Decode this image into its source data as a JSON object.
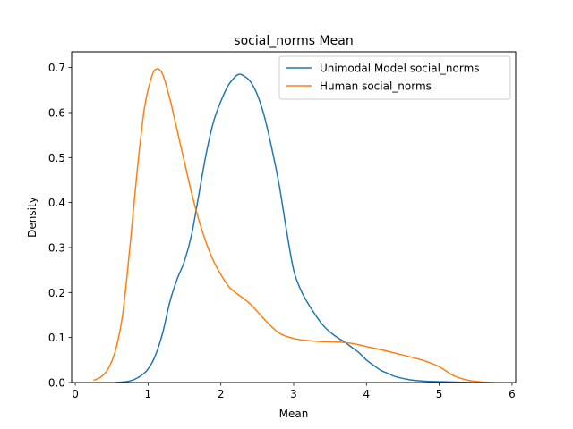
{
  "chart_data": {
    "type": "line",
    "title": "social_norms Mean",
    "xlabel": "Mean",
    "ylabel": "Density",
    "xlim": [
      -0.05,
      6.05
    ],
    "ylim": [
      0,
      0.735
    ],
    "xticks": [
      0,
      1,
      2,
      3,
      4,
      5,
      6
    ],
    "yticks": [
      0.0,
      0.1,
      0.2,
      0.3,
      0.4,
      0.5,
      0.6,
      0.7
    ],
    "xtick_labels": [
      "0",
      "1",
      "2",
      "3",
      "4",
      "5",
      "6"
    ],
    "ytick_labels": [
      "0.0",
      "0.1",
      "0.2",
      "0.3",
      "0.4",
      "0.5",
      "0.6",
      "0.7"
    ],
    "grid": false,
    "legend_position": "top-right",
    "series": [
      {
        "name": "Unimodal Model social_norms",
        "color": "#1f77b4",
        "x": [
          0.55,
          0.7,
          0.8,
          0.9,
          1.0,
          1.1,
          1.2,
          1.3,
          1.4,
          1.5,
          1.6,
          1.7,
          1.8,
          1.9,
          2.0,
          2.1,
          2.2,
          2.25,
          2.3,
          2.4,
          2.5,
          2.6,
          2.7,
          2.8,
          2.9,
          3.0,
          3.1,
          3.2,
          3.3,
          3.4,
          3.5,
          3.6,
          3.7,
          3.8,
          3.9,
          4.0,
          4.1,
          4.2,
          4.3,
          4.4,
          4.6,
          4.8,
          5.0,
          5.2,
          5.45
        ],
        "values": [
          0.0,
          0.002,
          0.006,
          0.015,
          0.03,
          0.06,
          0.11,
          0.18,
          0.23,
          0.27,
          0.33,
          0.42,
          0.51,
          0.58,
          0.625,
          0.66,
          0.68,
          0.685,
          0.683,
          0.67,
          0.64,
          0.59,
          0.52,
          0.44,
          0.34,
          0.25,
          0.205,
          0.175,
          0.15,
          0.128,
          0.112,
          0.1,
          0.09,
          0.078,
          0.066,
          0.05,
          0.038,
          0.027,
          0.02,
          0.013,
          0.006,
          0.003,
          0.002,
          0.001,
          0.0
        ]
      },
      {
        "name": "Human social_norms",
        "color": "#ff7f0e",
        "x": [
          0.25,
          0.35,
          0.45,
          0.55,
          0.65,
          0.75,
          0.85,
          0.95,
          1.05,
          1.12,
          1.2,
          1.3,
          1.4,
          1.5,
          1.6,
          1.7,
          1.8,
          1.9,
          2.0,
          2.1,
          2.2,
          2.4,
          2.6,
          2.8,
          3.0,
          3.2,
          3.4,
          3.6,
          3.8,
          4.0,
          4.2,
          4.4,
          4.6,
          4.8,
          5.0,
          5.2,
          5.4,
          5.6,
          5.75
        ],
        "values": [
          0.005,
          0.012,
          0.03,
          0.07,
          0.15,
          0.3,
          0.47,
          0.61,
          0.68,
          0.697,
          0.685,
          0.63,
          0.56,
          0.49,
          0.42,
          0.36,
          0.31,
          0.27,
          0.24,
          0.215,
          0.2,
          0.175,
          0.14,
          0.11,
          0.098,
          0.093,
          0.091,
          0.09,
          0.087,
          0.08,
          0.073,
          0.065,
          0.057,
          0.048,
          0.035,
          0.015,
          0.005,
          0.001,
          0.0
        ]
      }
    ]
  }
}
